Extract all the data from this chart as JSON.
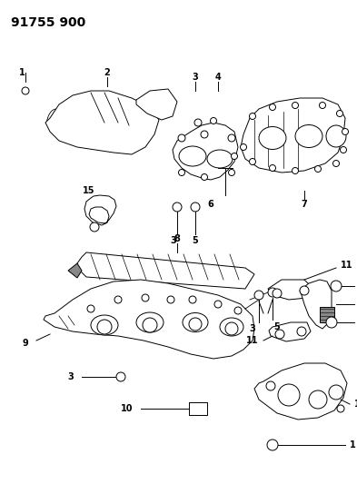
{
  "title": "91755 900",
  "bg_color": "#ffffff",
  "line_color": "#000000",
  "title_fontsize": 10,
  "label_fontsize": 7,
  "fig_width": 3.93,
  "fig_height": 5.33,
  "dpi": 100
}
